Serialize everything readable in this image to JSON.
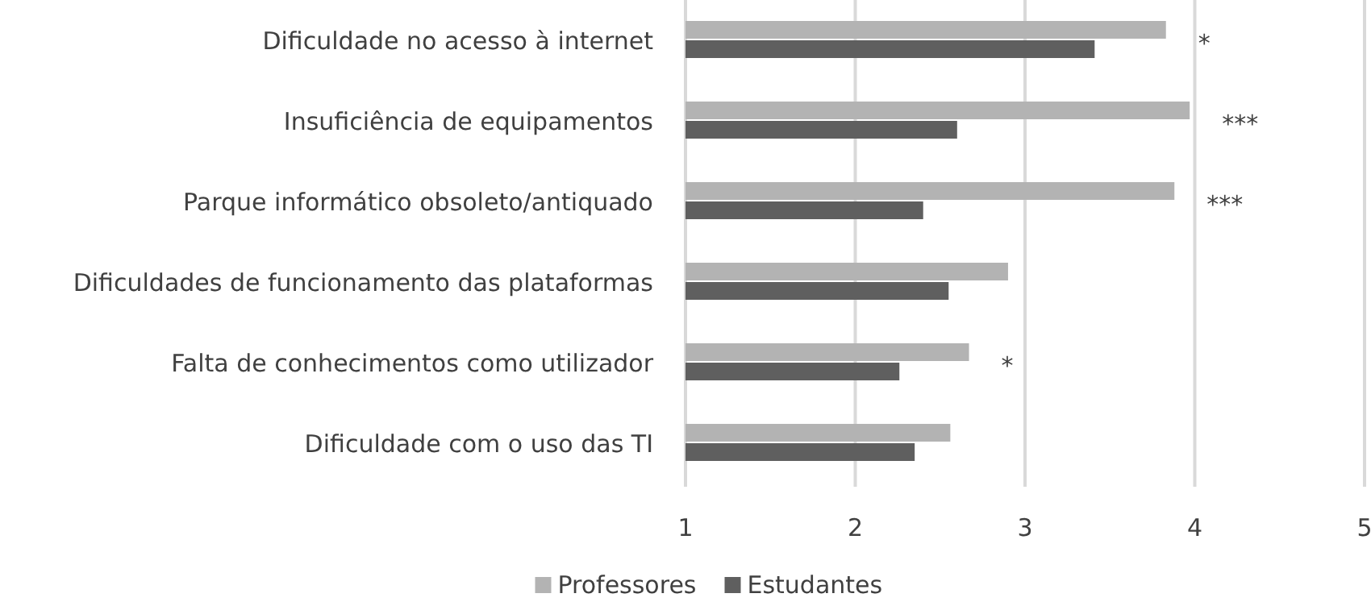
{
  "chart_data": {
    "type": "bar",
    "orientation": "horizontal",
    "categories": [
      "Dificuldade no acesso à internet",
      "Insuficiência de equipamentos",
      "Parque informático obsoleto/antiquado",
      "Dificuldades de funcionamento das plataformas",
      "Falta de conhecimentos como utilizador",
      "Dificuldade com o uso das TI"
    ],
    "series": [
      {
        "name": "Professores",
        "color": "#b3b3b3",
        "values": [
          3.83,
          3.97,
          3.88,
          2.9,
          2.67,
          2.56
        ],
        "value_labels": [
          "*",
          "***",
          "***",
          null,
          "*",
          null
        ]
      },
      {
        "name": "Estudantes",
        "color": "#5f5f5f",
        "values": [
          3.41,
          2.6,
          2.4,
          2.55,
          2.26,
          2.35
        ]
      }
    ],
    "xlim": [
      1,
      5
    ],
    "xticks": [
      1,
      2,
      3,
      4,
      5
    ],
    "grid": "x",
    "legend": "bottom"
  }
}
